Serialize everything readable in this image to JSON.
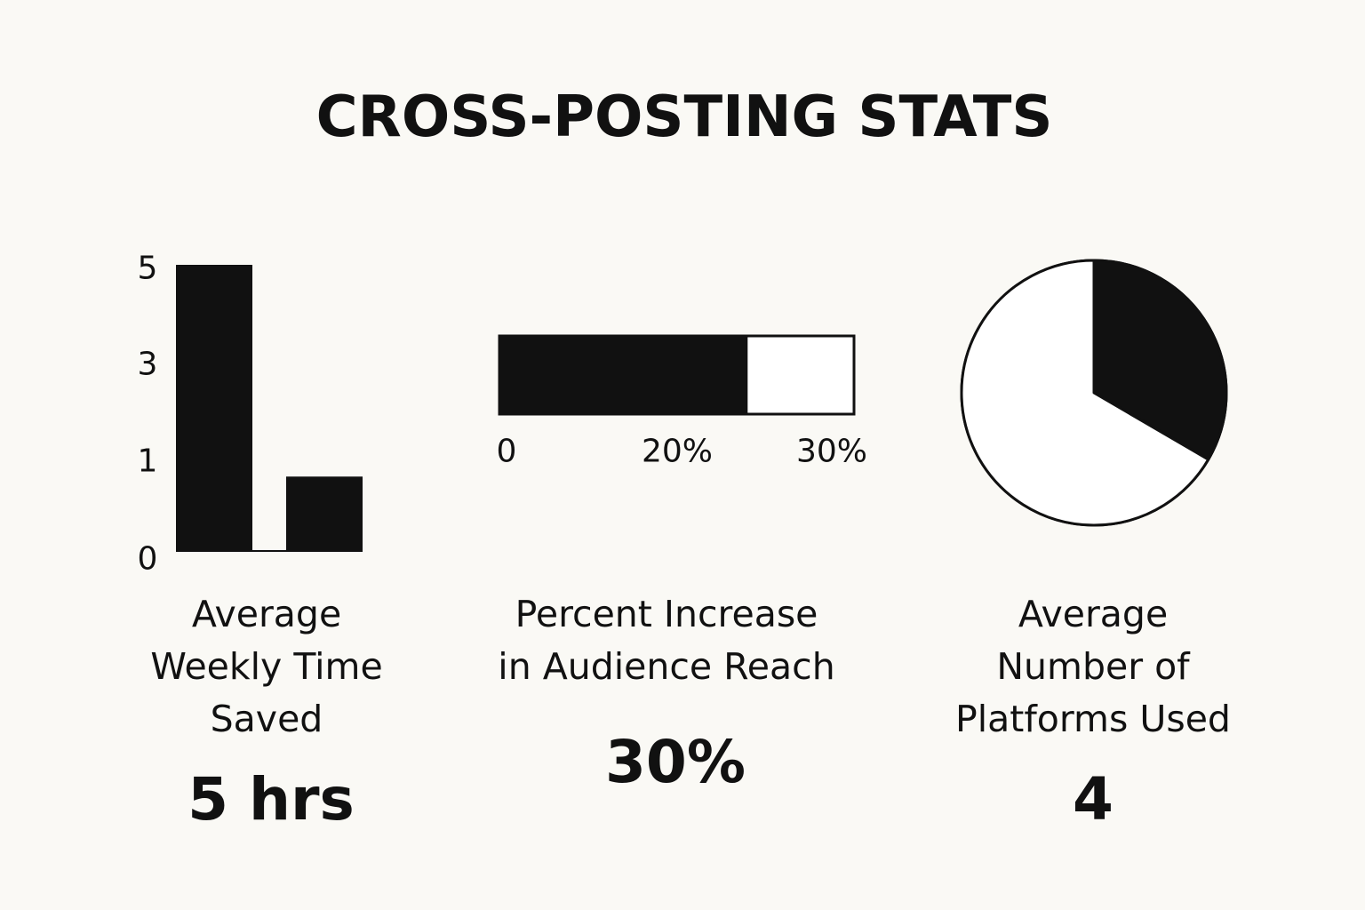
{
  "title": "CROSS-POSTING STATS",
  "colors": {
    "background": "#faf9f5",
    "ink": "#111111",
    "fill_empty": "#ffffff"
  },
  "panels": [
    {
      "label_lines": [
        "Average",
        "Weekly Time",
        "Saved"
      ],
      "value": "5 hrs"
    },
    {
      "label_lines": [
        "Percent Increase",
        "in Audience Reach"
      ],
      "value": "30%"
    },
    {
      "label_lines": [
        "Average",
        "Number of",
        "Platforms Used"
      ],
      "value": "4"
    }
  ],
  "chart_data": [
    {
      "type": "bar",
      "categories": [
        "",
        ""
      ],
      "values": [
        5,
        1.3
      ],
      "yticks": [
        {
          "value": 0,
          "label": "0"
        },
        {
          "value": 1,
          "label": "1"
        },
        {
          "value": 3,
          "label": "3"
        },
        {
          "value": 5,
          "label": "5"
        }
      ],
      "ylim": [
        0,
        5
      ],
      "grid": false
    },
    {
      "type": "bar",
      "orientation": "horizontal-progress",
      "value": 30,
      "filled_fraction": 0.7,
      "ticks": [
        {
          "label": "0"
        },
        {
          "label": "20%"
        },
        {
          "label": "30%"
        }
      ],
      "grid": false
    },
    {
      "type": "pie",
      "slices": [
        {
          "fraction": 0.334,
          "color": "#111111"
        },
        {
          "fraction": 0.666,
          "color": "#ffffff"
        }
      ],
      "start": "top",
      "direction": "clockwise"
    }
  ]
}
